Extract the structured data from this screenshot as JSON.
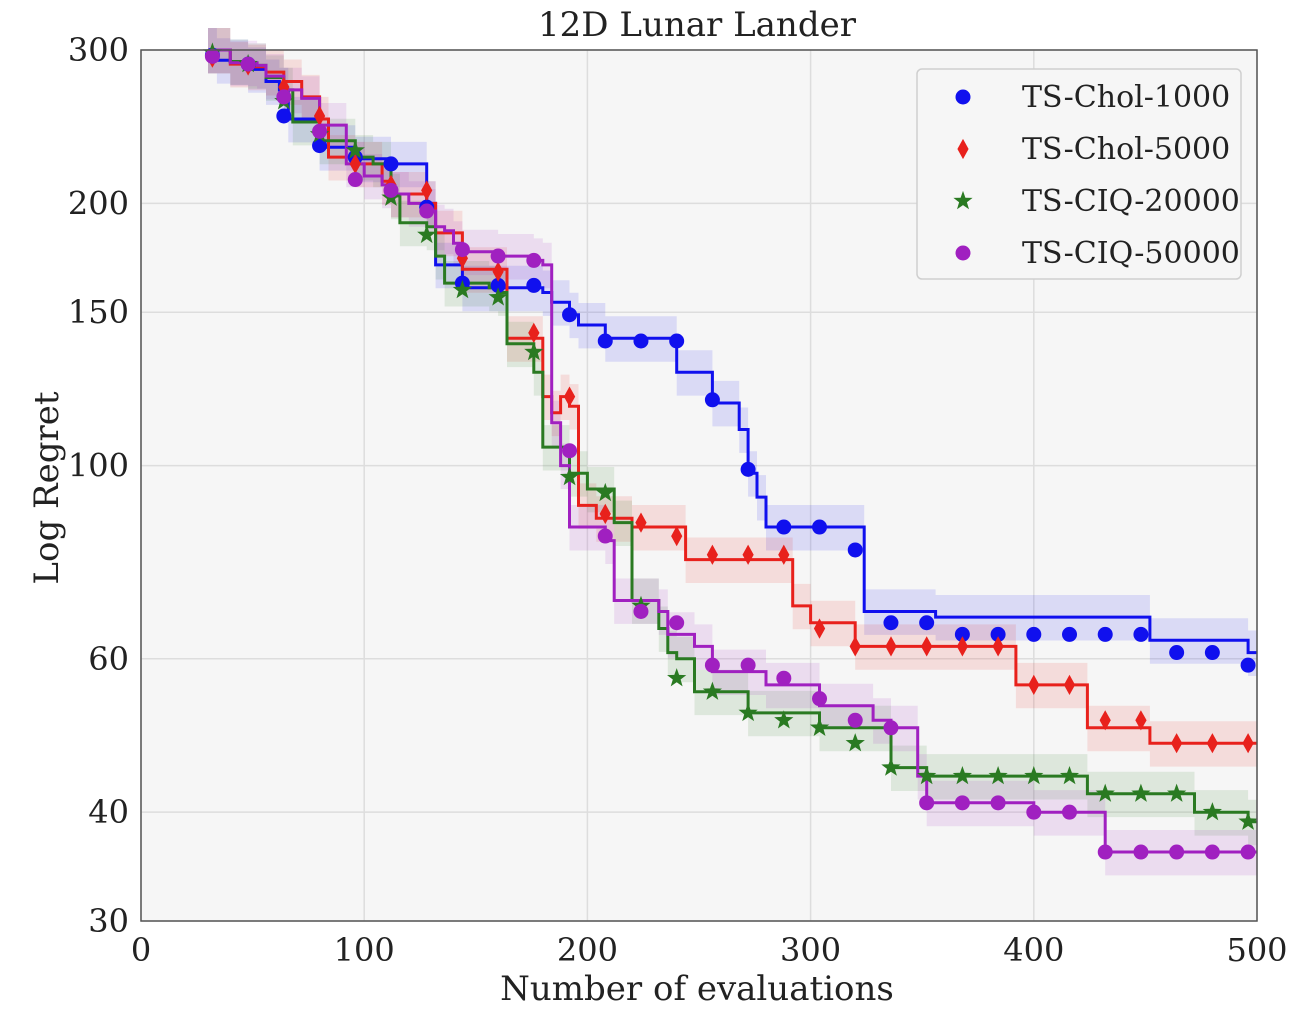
{
  "chart_data": {
    "type": "line",
    "title": "12D Lunar Lander",
    "xlabel": "Number of evaluations",
    "ylabel": "Log Regret",
    "xlim": [
      0,
      500
    ],
    "ylim": [
      30,
      300
    ],
    "yscale": "log",
    "xticks": [
      0,
      100,
      200,
      300,
      400,
      500
    ],
    "yticks": [
      30,
      40,
      60,
      100,
      150,
      200,
      300
    ],
    "grid": true,
    "legend_position": "top-right",
    "series": [
      {
        "name": "TS-Chol-1000",
        "color": "#1010ee",
        "marker": "circle",
        "steps": [
          [
            30,
            300
          ],
          [
            34,
            292
          ],
          [
            40,
            291
          ],
          [
            48,
            285
          ],
          [
            56,
            276
          ],
          [
            62,
            270
          ],
          [
            66,
            250
          ],
          [
            72,
            250
          ],
          [
            80,
            232
          ],
          [
            84,
            232
          ],
          [
            96,
            225
          ],
          [
            104,
            225
          ],
          [
            112,
            222
          ],
          [
            124,
            222
          ],
          [
            128,
            200
          ],
          [
            132,
            170
          ],
          [
            136,
            170
          ],
          [
            144,
            160
          ],
          [
            176,
            160
          ],
          [
            180,
            158
          ],
          [
            184,
            154
          ],
          [
            192,
            149
          ],
          [
            196,
            145
          ],
          [
            208,
            140
          ],
          [
            224,
            140
          ],
          [
            236,
            140
          ],
          [
            240,
            128
          ],
          [
            256,
            118
          ],
          [
            264,
            118
          ],
          [
            268,
            110
          ],
          [
            272,
            98
          ],
          [
            276,
            92
          ],
          [
            280,
            85
          ],
          [
            296,
            85
          ],
          [
            320,
            85
          ],
          [
            324,
            68
          ],
          [
            336,
            68
          ],
          [
            352,
            68
          ],
          [
            356,
            67
          ],
          [
            368,
            67
          ],
          [
            384,
            67
          ],
          [
            400,
            67
          ],
          [
            416,
            67
          ],
          [
            432,
            67
          ],
          [
            448,
            67
          ],
          [
            452,
            63
          ],
          [
            464,
            63
          ],
          [
            480,
            63
          ],
          [
            496,
            61
          ],
          [
            500,
            61
          ]
        ],
        "points": [
          [
            32,
            296
          ],
          [
            48,
            289
          ],
          [
            64,
            252
          ],
          [
            80,
            233
          ],
          [
            96,
            226
          ],
          [
            112,
            222
          ],
          [
            128,
            198
          ],
          [
            144,
            162
          ],
          [
            160,
            161
          ],
          [
            176,
            161
          ],
          [
            192,
            149
          ],
          [
            208,
            139
          ],
          [
            224,
            139
          ],
          [
            240,
            139
          ],
          [
            256,
            119
          ],
          [
            272,
            99
          ],
          [
            288,
            85
          ],
          [
            304,
            85
          ],
          [
            320,
            80
          ],
          [
            336,
            66
          ],
          [
            352,
            66
          ],
          [
            368,
            64
          ],
          [
            384,
            64
          ],
          [
            400,
            64
          ],
          [
            416,
            64
          ],
          [
            432,
            64
          ],
          [
            448,
            64
          ],
          [
            464,
            61
          ],
          [
            480,
            61
          ],
          [
            496,
            59
          ]
        ]
      },
      {
        "name": "TS-Chol-5000",
        "color": "#e8211c",
        "marker": "diamond",
        "steps": [
          [
            30,
            300
          ],
          [
            40,
            289
          ],
          [
            48,
            287
          ],
          [
            56,
            283
          ],
          [
            64,
            276
          ],
          [
            72,
            265
          ],
          [
            80,
            250
          ],
          [
            84,
            226
          ],
          [
            96,
            222
          ],
          [
            108,
            212
          ],
          [
            112,
            205
          ],
          [
            124,
            205
          ],
          [
            128,
            200
          ],
          [
            132,
            185
          ],
          [
            140,
            185
          ],
          [
            144,
            168
          ],
          [
            160,
            168
          ],
          [
            164,
            140
          ],
          [
            176,
            140
          ],
          [
            180,
            120
          ],
          [
            184,
            115
          ],
          [
            188,
            120
          ],
          [
            192,
            117
          ],
          [
            196,
            90
          ],
          [
            200,
            90
          ],
          [
            204,
            87
          ],
          [
            208,
            87
          ],
          [
            220,
            85
          ],
          [
            236,
            85
          ],
          [
            244,
            78
          ],
          [
            256,
            78
          ],
          [
            272,
            78
          ],
          [
            288,
            78
          ],
          [
            292,
            69
          ],
          [
            300,
            66
          ],
          [
            312,
            66
          ],
          [
            320,
            62
          ],
          [
            336,
            62
          ],
          [
            352,
            62
          ],
          [
            368,
            62
          ],
          [
            384,
            62
          ],
          [
            392,
            56
          ],
          [
            416,
            56
          ],
          [
            424,
            50
          ],
          [
            432,
            50
          ],
          [
            448,
            50
          ],
          [
            452,
            48
          ],
          [
            464,
            48
          ],
          [
            480,
            48
          ],
          [
            496,
            48
          ],
          [
            500,
            48
          ]
        ],
        "points": [
          [
            32,
            294
          ],
          [
            48,
            288
          ],
          [
            64,
            272
          ],
          [
            80,
            252
          ],
          [
            96,
            222
          ],
          [
            112,
            210
          ],
          [
            128,
            207
          ],
          [
            144,
            173
          ],
          [
            160,
            167
          ],
          [
            176,
            142
          ],
          [
            192,
            120
          ],
          [
            208,
            88
          ],
          [
            224,
            86
          ],
          [
            240,
            83
          ],
          [
            256,
            79
          ],
          [
            272,
            79
          ],
          [
            288,
            79
          ],
          [
            304,
            65
          ],
          [
            320,
            62
          ],
          [
            336,
            62
          ],
          [
            352,
            62
          ],
          [
            368,
            62
          ],
          [
            384,
            62
          ],
          [
            400,
            56
          ],
          [
            416,
            56
          ],
          [
            432,
            51
          ],
          [
            448,
            51
          ],
          [
            464,
            48
          ],
          [
            480,
            48
          ],
          [
            496,
            48
          ]
        ]
      },
      {
        "name": "TS-CIQ-20000",
        "color": "#2a7a22",
        "marker": "star",
        "steps": [
          [
            30,
            300
          ],
          [
            40,
            291
          ],
          [
            48,
            288
          ],
          [
            56,
            279
          ],
          [
            64,
            270
          ],
          [
            68,
            248
          ],
          [
            80,
            236
          ],
          [
            96,
            226
          ],
          [
            104,
            222
          ],
          [
            112,
            204
          ],
          [
            116,
            190
          ],
          [
            128,
            188
          ],
          [
            132,
            174
          ],
          [
            136,
            162
          ],
          [
            144,
            162
          ],
          [
            156,
            160
          ],
          [
            160,
            158
          ],
          [
            164,
            138
          ],
          [
            172,
            138
          ],
          [
            176,
            128
          ],
          [
            180,
            105
          ],
          [
            188,
            105
          ],
          [
            192,
            98
          ],
          [
            200,
            94
          ],
          [
            208,
            94
          ],
          [
            212,
            86
          ],
          [
            216,
            86
          ],
          [
            220,
            70
          ],
          [
            228,
            70
          ],
          [
            232,
            65
          ],
          [
            236,
            61
          ],
          [
            240,
            60
          ],
          [
            248,
            55
          ],
          [
            256,
            55
          ],
          [
            264,
            55
          ],
          [
            272,
            52
          ],
          [
            288,
            52
          ],
          [
            304,
            50
          ],
          [
            320,
            50
          ],
          [
            332,
            50
          ],
          [
            336,
            45
          ],
          [
            344,
            45
          ],
          [
            352,
            44
          ],
          [
            368,
            44
          ],
          [
            384,
            44
          ],
          [
            400,
            44
          ],
          [
            416,
            44
          ],
          [
            424,
            42
          ],
          [
            432,
            42
          ],
          [
            448,
            42
          ],
          [
            464,
            42
          ],
          [
            472,
            40
          ],
          [
            480,
            40
          ],
          [
            488,
            40
          ],
          [
            496,
            39
          ],
          [
            500,
            39
          ]
        ],
        "points": [
          [
            32,
            298
          ],
          [
            48,
            289
          ],
          [
            64,
            262
          ],
          [
            80,
            240
          ],
          [
            96,
            230
          ],
          [
            112,
            203
          ],
          [
            128,
            184
          ],
          [
            144,
            159
          ],
          [
            160,
            156
          ],
          [
            176,
            135
          ],
          [
            192,
            97
          ],
          [
            208,
            93
          ],
          [
            224,
            69
          ],
          [
            240,
            57
          ],
          [
            256,
            55
          ],
          [
            272,
            52
          ],
          [
            288,
            51
          ],
          [
            304,
            50
          ],
          [
            320,
            48
          ],
          [
            336,
            45
          ],
          [
            352,
            44
          ],
          [
            368,
            44
          ],
          [
            384,
            44
          ],
          [
            400,
            44
          ],
          [
            416,
            44
          ],
          [
            432,
            42
          ],
          [
            448,
            42
          ],
          [
            464,
            42
          ],
          [
            480,
            40
          ],
          [
            496,
            39
          ]
        ]
      },
      {
        "name": "TS-CIQ-50000",
        "color": "#a020c0",
        "marker": "circle",
        "steps": [
          [
            30,
            300
          ],
          [
            40,
            290
          ],
          [
            52,
            288
          ],
          [
            56,
            280
          ],
          [
            64,
            270
          ],
          [
            72,
            264
          ],
          [
            80,
            246
          ],
          [
            92,
            222
          ],
          [
            100,
            215
          ],
          [
            108,
            210
          ],
          [
            112,
            205
          ],
          [
            120,
            200
          ],
          [
            128,
            196
          ],
          [
            132,
            188
          ],
          [
            136,
            186
          ],
          [
            140,
            180
          ],
          [
            144,
            176
          ],
          [
            160,
            174
          ],
          [
            176,
            172
          ],
          [
            180,
            170
          ],
          [
            184,
            112
          ],
          [
            188,
            100
          ],
          [
            192,
            85
          ],
          [
            208,
            82
          ],
          [
            212,
            70
          ],
          [
            220,
            70
          ],
          [
            232,
            68
          ],
          [
            236,
            64
          ],
          [
            248,
            62
          ],
          [
            256,
            58
          ],
          [
            272,
            58
          ],
          [
            280,
            56
          ],
          [
            288,
            56
          ],
          [
            304,
            53
          ],
          [
            320,
            53
          ],
          [
            328,
            51
          ],
          [
            336,
            50
          ],
          [
            344,
            50
          ],
          [
            348,
            44
          ],
          [
            352,
            41
          ],
          [
            368,
            41
          ],
          [
            384,
            41
          ],
          [
            400,
            40
          ],
          [
            416,
            40
          ],
          [
            428,
            40
          ],
          [
            432,
            36
          ],
          [
            448,
            36
          ],
          [
            464,
            36
          ],
          [
            480,
            36
          ],
          [
            496,
            36
          ],
          [
            500,
            36
          ]
        ],
        "points": [
          [
            32,
            295
          ],
          [
            48,
            289
          ],
          [
            64,
            265
          ],
          [
            80,
            242
          ],
          [
            96,
            213
          ],
          [
            112,
            207
          ],
          [
            128,
            196
          ],
          [
            144,
            177
          ],
          [
            160,
            174
          ],
          [
            176,
            172
          ],
          [
            192,
            104
          ],
          [
            208,
            83
          ],
          [
            224,
            68
          ],
          [
            240,
            66
          ],
          [
            256,
            59
          ],
          [
            272,
            59
          ],
          [
            288,
            57
          ],
          [
            304,
            54
          ],
          [
            320,
            51
          ],
          [
            336,
            50
          ],
          [
            352,
            41
          ],
          [
            368,
            41
          ],
          [
            384,
            41
          ],
          [
            400,
            40
          ],
          [
            416,
            40
          ],
          [
            432,
            36
          ],
          [
            448,
            36
          ],
          [
            464,
            36
          ],
          [
            480,
            36
          ],
          [
            496,
            36
          ]
        ]
      }
    ]
  }
}
